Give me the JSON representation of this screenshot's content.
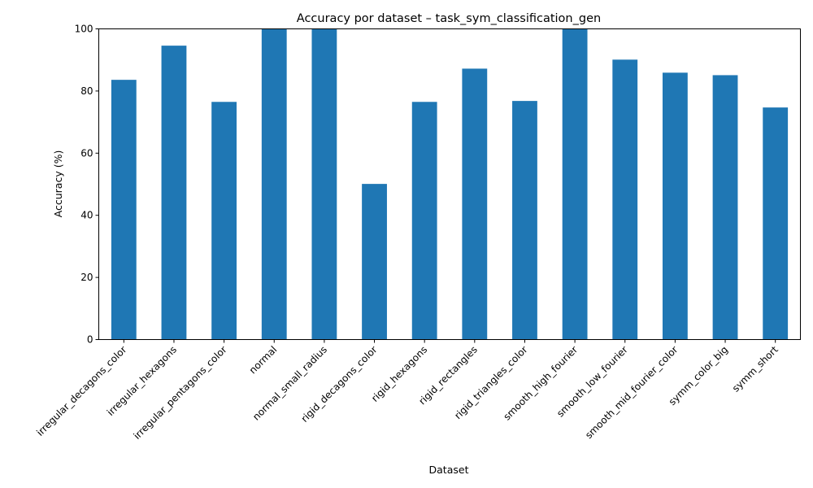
{
  "chart_data": {
    "type": "bar",
    "title": "Accuracy por dataset – task_sym_classification_gen",
    "xlabel": "Dataset",
    "ylabel": "Accuracy (%)",
    "ylim": [
      0,
      100
    ],
    "yticks": [
      0,
      20,
      40,
      60,
      80,
      100
    ],
    "grid": false,
    "bar_color": "#1f77b4",
    "categories": [
      "irregular_decagons_color",
      "irregular_hexagons",
      "irregular_pentagons_color",
      "normal",
      "normal_small_radius",
      "rigid_decagons_color",
      "rigid_hexagons",
      "rigid_rectangles",
      "rigid_triangles_color",
      "smooth_high_fourier",
      "smooth_low_fourier",
      "smooth_mid_fourier_color",
      "symm_color_big",
      "symm_short"
    ],
    "values": [
      83.6,
      94.6,
      76.5,
      100,
      100,
      50.1,
      76.5,
      87.2,
      76.8,
      100,
      90.1,
      85.9,
      85.1,
      74.7
    ]
  }
}
